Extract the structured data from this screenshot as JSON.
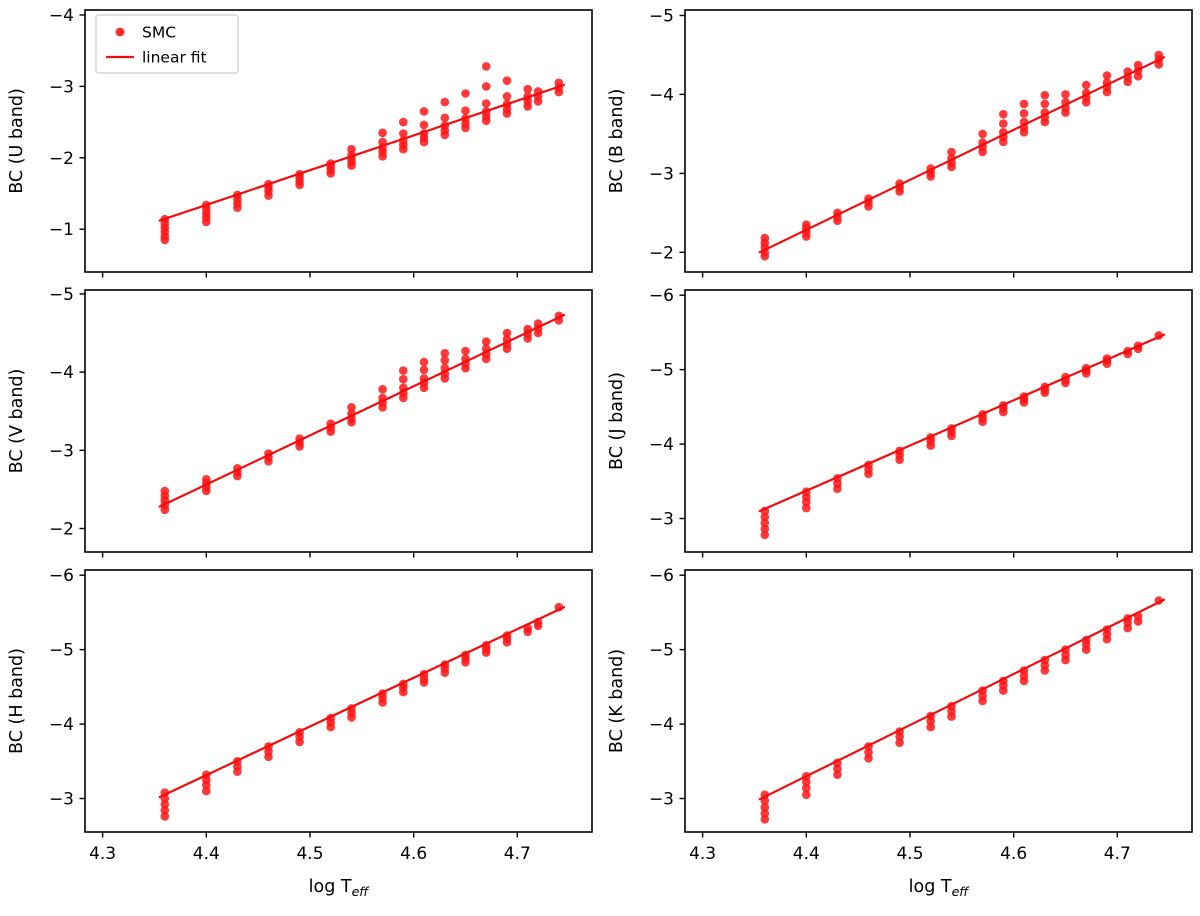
{
  "figure": {
    "colors": {
      "data": "#ff1616",
      "fit": "#f20d0d",
      "axis": "#000000",
      "background": "#ffffff",
      "legend_border": "#cccccc"
    }
  },
  "legend": {
    "entries": [
      {
        "type": "marker",
        "label": "SMC"
      },
      {
        "type": "line",
        "label": "linear fit"
      }
    ]
  },
  "chart_data": {
    "type": "scatter",
    "layout": {
      "rows": 3,
      "cols": 2,
      "shared_x": true,
      "grid": false,
      "legend_position": "upper-left-first-panel",
      "y_axis_inverted": true
    },
    "x": {
      "label_text": "log T",
      "label_sub": "eff",
      "lim": [
        4.283,
        4.772
      ],
      "ticks": [
        4.3,
        4.4,
        4.5,
        4.6,
        4.7
      ]
    },
    "series": [
      {
        "name": "SMC",
        "style": "scatter"
      },
      {
        "name": "linear fit",
        "style": "line"
      }
    ],
    "panels": [
      {
        "band": "U",
        "ylabel": "BC (U band)",
        "ylim": [
          -0.4,
          -4.07
        ],
        "yticks": [
          -4,
          -3,
          -2,
          -1
        ],
        "fit_line": {
          "x": [
            4.355,
            4.745
          ],
          "y": [
            -1.12,
            -3.02
          ]
        },
        "clusters": [
          {
            "x": 4.36,
            "y": [
              -0.85,
              -0.9,
              -0.96,
              -1.02,
              -1.08,
              -1.14
            ]
          },
          {
            "x": 4.4,
            "y": [
              -1.1,
              -1.16,
              -1.22,
              -1.28,
              -1.34
            ]
          },
          {
            "x": 4.43,
            "y": [
              -1.3,
              -1.36,
              -1.42,
              -1.48
            ]
          },
          {
            "x": 4.46,
            "y": [
              -1.47,
              -1.53,
              -1.58,
              -1.63
            ]
          },
          {
            "x": 4.49,
            "y": [
              -1.62,
              -1.67,
              -1.72,
              -1.77
            ]
          },
          {
            "x": 4.52,
            "y": [
              -1.78,
              -1.83,
              -1.88,
              -1.92
            ]
          },
          {
            "x": 4.54,
            "y": [
              -1.89,
              -1.94,
              -1.99,
              -2.04,
              -2.12
            ]
          },
          {
            "x": 4.57,
            "y": [
              -2.02,
              -2.08,
              -2.14,
              -2.22,
              -2.35
            ]
          },
          {
            "x": 4.59,
            "y": [
              -2.12,
              -2.18,
              -2.24,
              -2.34,
              -2.5
            ]
          },
          {
            "x": 4.61,
            "y": [
              -2.22,
              -2.28,
              -2.34,
              -2.46,
              -2.65
            ]
          },
          {
            "x": 4.63,
            "y": [
              -2.32,
              -2.38,
              -2.45,
              -2.56,
              -2.78
            ]
          },
          {
            "x": 4.65,
            "y": [
              -2.42,
              -2.48,
              -2.55,
              -2.66,
              -2.9
            ]
          },
          {
            "x": 4.67,
            "y": [
              -2.52,
              -2.58,
              -2.65,
              -2.76,
              -3.0,
              -3.28
            ]
          },
          {
            "x": 4.69,
            "y": [
              -2.62,
              -2.68,
              -2.75,
              -2.86,
              -3.08
            ]
          },
          {
            "x": 4.71,
            "y": [
              -2.72,
              -2.79,
              -2.86,
              -2.96
            ]
          },
          {
            "x": 4.72,
            "y": [
              -2.79,
              -2.86,
              -2.93
            ]
          },
          {
            "x": 4.74,
            "y": [
              -2.92,
              -2.98,
              -3.05
            ]
          }
        ]
      },
      {
        "band": "B",
        "ylabel": "BC (B band)",
        "ylim": [
          -1.75,
          -5.07
        ],
        "yticks": [
          -5,
          -4,
          -3,
          -2
        ],
        "fit_line": {
          "x": [
            4.355,
            4.745
          ],
          "y": [
            -2.0,
            -4.47
          ]
        },
        "clusters": [
          {
            "x": 4.36,
            "y": [
              -1.95,
              -2.0,
              -2.06,
              -2.12,
              -2.18
            ]
          },
          {
            "x": 4.4,
            "y": [
              -2.2,
              -2.25,
              -2.3,
              -2.35
            ]
          },
          {
            "x": 4.43,
            "y": [
              -2.4,
              -2.45,
              -2.5
            ]
          },
          {
            "x": 4.46,
            "y": [
              -2.58,
              -2.63,
              -2.68
            ]
          },
          {
            "x": 4.49,
            "y": [
              -2.77,
              -2.82,
              -2.87
            ]
          },
          {
            "x": 4.52,
            "y": [
              -2.96,
              -3.01,
              -3.06
            ]
          },
          {
            "x": 4.54,
            "y": [
              -3.08,
              -3.13,
              -3.19,
              -3.27
            ]
          },
          {
            "x": 4.57,
            "y": [
              -3.27,
              -3.33,
              -3.39,
              -3.5
            ]
          },
          {
            "x": 4.59,
            "y": [
              -3.4,
              -3.46,
              -3.52,
              -3.63,
              -3.75
            ]
          },
          {
            "x": 4.61,
            "y": [
              -3.52,
              -3.58,
              -3.65,
              -3.76,
              -3.88
            ]
          },
          {
            "x": 4.63,
            "y": [
              -3.65,
              -3.71,
              -3.77,
              -3.88,
              -3.99
            ]
          },
          {
            "x": 4.65,
            "y": [
              -3.77,
              -3.83,
              -3.9,
              -4.0
            ]
          },
          {
            "x": 4.67,
            "y": [
              -3.9,
              -3.96,
              -4.02,
              -4.12
            ]
          },
          {
            "x": 4.69,
            "y": [
              -4.03,
              -4.09,
              -4.15,
              -4.24
            ]
          },
          {
            "x": 4.71,
            "y": [
              -4.16,
              -4.22,
              -4.29
            ]
          },
          {
            "x": 4.72,
            "y": [
              -4.23,
              -4.3,
              -4.37
            ]
          },
          {
            "x": 4.74,
            "y": [
              -4.38,
              -4.44,
              -4.5
            ]
          }
        ]
      },
      {
        "band": "V",
        "ylabel": "BC (V band)",
        "ylim": [
          -1.7,
          -5.05
        ],
        "yticks": [
          -5,
          -4,
          -3,
          -2
        ],
        "fit_line": {
          "x": [
            4.355,
            4.745
          ],
          "y": [
            -2.28,
            -4.73
          ]
        },
        "clusters": [
          {
            "x": 4.36,
            "y": [
              -2.24,
              -2.3,
              -2.36,
              -2.42,
              -2.48
            ]
          },
          {
            "x": 4.4,
            "y": [
              -2.48,
              -2.53,
              -2.58,
              -2.63
            ]
          },
          {
            "x": 4.43,
            "y": [
              -2.67,
              -2.72,
              -2.77
            ]
          },
          {
            "x": 4.46,
            "y": [
              -2.86,
              -2.91,
              -2.96
            ]
          },
          {
            "x": 4.49,
            "y": [
              -3.05,
              -3.1,
              -3.15
            ]
          },
          {
            "x": 4.52,
            "y": [
              -3.24,
              -3.29,
              -3.34
            ]
          },
          {
            "x": 4.54,
            "y": [
              -3.36,
              -3.41,
              -3.47,
              -3.55
            ]
          },
          {
            "x": 4.57,
            "y": [
              -3.55,
              -3.61,
              -3.67,
              -3.78
            ]
          },
          {
            "x": 4.59,
            "y": [
              -3.67,
              -3.73,
              -3.8,
              -3.91,
              -4.02
            ]
          },
          {
            "x": 4.61,
            "y": [
              -3.8,
              -3.86,
              -3.92,
              -4.03,
              -4.13
            ]
          },
          {
            "x": 4.63,
            "y": [
              -3.92,
              -3.98,
              -4.05,
              -4.15,
              -4.24
            ]
          },
          {
            "x": 4.65,
            "y": [
              -4.05,
              -4.11,
              -4.17,
              -4.27
            ]
          },
          {
            "x": 4.67,
            "y": [
              -4.17,
              -4.23,
              -4.3,
              -4.39
            ]
          },
          {
            "x": 4.69,
            "y": [
              -4.3,
              -4.36,
              -4.42,
              -4.5
            ]
          },
          {
            "x": 4.71,
            "y": [
              -4.43,
              -4.49,
              -4.55
            ]
          },
          {
            "x": 4.72,
            "y": [
              -4.5,
              -4.56,
              -4.62
            ]
          },
          {
            "x": 4.74,
            "y": [
              -4.66,
              -4.72
            ]
          }
        ]
      },
      {
        "band": "J",
        "ylabel": "BC (J band)",
        "ylim": [
          -2.55,
          -6.07
        ],
        "yticks": [
          -6,
          -5,
          -4,
          -3
        ],
        "fit_line": {
          "x": [
            4.355,
            4.745
          ],
          "y": [
            -3.1,
            -5.47
          ]
        },
        "clusters": [
          {
            "x": 4.36,
            "y": [
              -2.78,
              -2.86,
              -2.94,
              -3.02,
              -3.1
            ]
          },
          {
            "x": 4.4,
            "y": [
              -3.14,
              -3.22,
              -3.29,
              -3.36
            ]
          },
          {
            "x": 4.43,
            "y": [
              -3.4,
              -3.47,
              -3.54
            ]
          },
          {
            "x": 4.46,
            "y": [
              -3.6,
              -3.66,
              -3.72
            ]
          },
          {
            "x": 4.49,
            "y": [
              -3.79,
              -3.85,
              -3.91
            ]
          },
          {
            "x": 4.52,
            "y": [
              -3.98,
              -4.04,
              -4.09
            ]
          },
          {
            "x": 4.54,
            "y": [
              -4.11,
              -4.16,
              -4.21
            ]
          },
          {
            "x": 4.57,
            "y": [
              -4.3,
              -4.35,
              -4.4
            ]
          },
          {
            "x": 4.59,
            "y": [
              -4.43,
              -4.48,
              -4.52
            ]
          },
          {
            "x": 4.61,
            "y": [
              -4.56,
              -4.6,
              -4.64
            ]
          },
          {
            "x": 4.63,
            "y": [
              -4.69,
              -4.73,
              -4.77
            ]
          },
          {
            "x": 4.65,
            "y": [
              -4.82,
              -4.86,
              -4.9
            ]
          },
          {
            "x": 4.67,
            "y": [
              -4.95,
              -4.99,
              -5.02
            ]
          },
          {
            "x": 4.69,
            "y": [
              -5.08,
              -5.12,
              -5.15
            ]
          },
          {
            "x": 4.71,
            "y": [
              -5.21,
              -5.25
            ]
          },
          {
            "x": 4.72,
            "y": [
              -5.28,
              -5.32
            ]
          },
          {
            "x": 4.74,
            "y": [
              -5.46
            ]
          }
        ]
      },
      {
        "band": "H",
        "ylabel": "BC (H band)",
        "ylim": [
          -2.55,
          -6.07
        ],
        "yticks": [
          -6,
          -5,
          -4,
          -3
        ],
        "fit_line": {
          "x": [
            4.355,
            4.745
          ],
          "y": [
            -3.02,
            -5.57
          ]
        },
        "clusters": [
          {
            "x": 4.36,
            "y": [
              -2.76,
              -2.84,
              -2.92,
              -3.0,
              -3.08
            ]
          },
          {
            "x": 4.4,
            "y": [
              -3.1,
              -3.18,
              -3.25,
              -3.32
            ]
          },
          {
            "x": 4.43,
            "y": [
              -3.36,
              -3.43,
              -3.5
            ]
          },
          {
            "x": 4.46,
            "y": [
              -3.56,
              -3.63,
              -3.7
            ]
          },
          {
            "x": 4.49,
            "y": [
              -3.76,
              -3.83,
              -3.89
            ]
          },
          {
            "x": 4.52,
            "y": [
              -3.96,
              -4.02,
              -4.08
            ]
          },
          {
            "x": 4.54,
            "y": [
              -4.09,
              -4.15,
              -4.21
            ]
          },
          {
            "x": 4.57,
            "y": [
              -4.29,
              -4.35,
              -4.41
            ]
          },
          {
            "x": 4.59,
            "y": [
              -4.43,
              -4.49,
              -4.54
            ]
          },
          {
            "x": 4.61,
            "y": [
              -4.56,
              -4.61,
              -4.67
            ]
          },
          {
            "x": 4.63,
            "y": [
              -4.69,
              -4.75,
              -4.8
            ]
          },
          {
            "x": 4.65,
            "y": [
              -4.83,
              -4.88,
              -4.93
            ]
          },
          {
            "x": 4.67,
            "y": [
              -4.96,
              -5.01,
              -5.06
            ]
          },
          {
            "x": 4.69,
            "y": [
              -5.1,
              -5.15,
              -5.19
            ]
          },
          {
            "x": 4.71,
            "y": [
              -5.24,
              -5.29
            ]
          },
          {
            "x": 4.72,
            "y": [
              -5.32,
              -5.37
            ]
          },
          {
            "x": 4.74,
            "y": [
              -5.57
            ]
          }
        ]
      },
      {
        "band": "K",
        "ylabel": "BC (K band)",
        "ylim": [
          -2.55,
          -6.07
        ],
        "yticks": [
          -6,
          -5,
          -4,
          -3
        ],
        "fit_line": {
          "x": [
            4.355,
            4.745
          ],
          "y": [
            -2.99,
            -5.67
          ]
        },
        "clusters": [
          {
            "x": 4.36,
            "y": [
              -2.72,
              -2.8,
              -2.88,
              -2.97,
              -3.05
            ]
          },
          {
            "x": 4.4,
            "y": [
              -3.05,
              -3.14,
              -3.22,
              -3.3
            ]
          },
          {
            "x": 4.43,
            "y": [
              -3.32,
              -3.4,
              -3.48
            ]
          },
          {
            "x": 4.46,
            "y": [
              -3.54,
              -3.62,
              -3.7
            ]
          },
          {
            "x": 4.49,
            "y": [
              -3.75,
              -3.83,
              -3.9
            ]
          },
          {
            "x": 4.52,
            "y": [
              -3.96,
              -4.04,
              -4.11
            ]
          },
          {
            "x": 4.54,
            "y": [
              -4.1,
              -4.17,
              -4.24
            ]
          },
          {
            "x": 4.57,
            "y": [
              -4.31,
              -4.38,
              -4.45
            ]
          },
          {
            "x": 4.59,
            "y": [
              -4.45,
              -4.52,
              -4.58
            ]
          },
          {
            "x": 4.61,
            "y": [
              -4.58,
              -4.65,
              -4.72
            ]
          },
          {
            "x": 4.63,
            "y": [
              -4.72,
              -4.79,
              -4.86
            ]
          },
          {
            "x": 4.65,
            "y": [
              -4.86,
              -4.93,
              -5.0
            ]
          },
          {
            "x": 4.67,
            "y": [
              -5.0,
              -5.07,
              -5.13
            ]
          },
          {
            "x": 4.69,
            "y": [
              -5.14,
              -5.21,
              -5.27
            ]
          },
          {
            "x": 4.71,
            "y": [
              -5.29,
              -5.36,
              -5.42
            ]
          },
          {
            "x": 4.72,
            "y": [
              -5.38,
              -5.45
            ]
          },
          {
            "x": 4.74,
            "y": [
              -5.66
            ]
          }
        ]
      }
    ]
  }
}
